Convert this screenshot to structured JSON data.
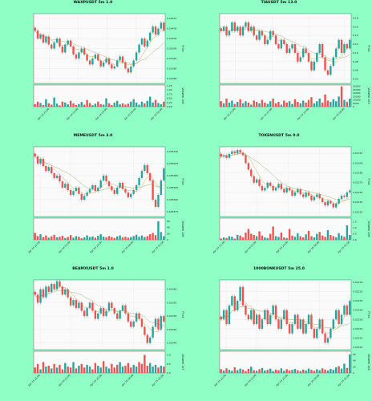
{
  "colors": {
    "background": "#8fffc5",
    "up": "#26a69a",
    "down": "#ef5350",
    "ma1": "#b8860b",
    "ma2": "#6b8e23"
  },
  "ylabel_price": "Price",
  "ylabel_volume": "Volume",
  "chart_data": [
    {
      "type": "candlestick",
      "title": "WAXPUSDT 5m 1.0",
      "ylabel": "Price",
      "ylabel2": "Volume",
      "volume_exp": "1e6",
      "price_ticks": [
        "0.03410",
        "0.03405",
        "0.03400",
        "0.03395",
        "0.03390",
        "0.03385",
        "0.03380"
      ],
      "price_range": [
        0.033775,
        0.034125
      ],
      "volume_ticks": [
        "1.25",
        "1.00",
        "0.75",
        "0.50",
        "0.25",
        "0.00"
      ],
      "volume_range": [
        0,
        1.3
      ],
      "x_ticks": [
        "Apr 24 21:00",
        "Apr 24 22:00",
        "Apr 24 23:00",
        "Apr 25 00:00",
        "Apr 25 01:00"
      ],
      "x_tick_pos": [
        0.12,
        0.34,
        0.56,
        0.78,
        0.98
      ],
      "close": [
        0.03404,
        0.034,
        0.03402,
        0.03398,
        0.03401,
        0.03397,
        0.03395,
        0.03398,
        0.034,
        0.03396,
        0.03393,
        0.03397,
        0.03399,
        0.03396,
        0.03392,
        0.0339,
        0.03393,
        0.03395,
        0.03392,
        0.03389,
        0.03387,
        0.0339,
        0.03392,
        0.03389,
        0.03386,
        0.03388,
        0.0339,
        0.03387,
        0.03385,
        0.03386,
        0.03389,
        0.03391,
        0.03388,
        0.03385,
        0.03383,
        0.03386,
        0.03389,
        0.03393,
        0.03397,
        0.034,
        0.03396,
        0.03399,
        0.03403,
        0.03406,
        0.03402,
        0.03405,
        0.03408,
        0.03404
      ],
      "volume": [
        0.15,
        0.3,
        0.22,
        0.1,
        0.45,
        0.2,
        0.12,
        0.55,
        0.18,
        0.08,
        0.3,
        0.25,
        0.14,
        0.35,
        0.2,
        0.1,
        0.16,
        0.28,
        0.12,
        0.4,
        0.22,
        0.09,
        0.18,
        0.3,
        0.15,
        0.12,
        0.5,
        0.2,
        0.1,
        0.25,
        0.35,
        0.14,
        0.2,
        0.12,
        0.18,
        0.3,
        0.45,
        0.25,
        0.12,
        0.3,
        0.2,
        0.35,
        0.6,
        0.25,
        0.4,
        0.22,
        0.15,
        0.3
      ]
    },
    {
      "type": "candlestick",
      "title": "TIAUSDT 5m 13.0",
      "ylabel": "Price",
      "ylabel2": "Volume",
      "volume_exp": "1e3",
      "price_ticks": [
        "6.18",
        "6.16",
        "6.14",
        "6.12",
        "6.10",
        "6.08",
        "6.06",
        "6.04"
      ],
      "price_range": [
        6.03,
        6.19
      ],
      "volume_ticks": [
        "30000",
        "25000",
        "20000",
        "15000",
        "10000",
        "5000",
        "0"
      ],
      "volume_range": [
        0,
        32000
      ],
      "x_ticks": [
        "Apr 24 21:00",
        "Apr 24 22:00",
        "Apr 24 23:00",
        "Apr 25 00:00"
      ],
      "x_tick_pos": [
        0.12,
        0.4,
        0.68,
        0.95
      ],
      "close": [
        6.15,
        6.16,
        6.14,
        6.15,
        6.17,
        6.15,
        6.16,
        6.14,
        6.16,
        6.17,
        6.15,
        6.16,
        6.14,
        6.13,
        6.15,
        6.14,
        6.12,
        6.13,
        6.15,
        6.14,
        6.12,
        6.11,
        6.13,
        6.12,
        6.1,
        6.11,
        6.12,
        6.1,
        6.08,
        6.09,
        6.11,
        6.1,
        6.08,
        6.06,
        6.08,
        6.1,
        6.12,
        6.09,
        6.06,
        6.05,
        6.07,
        6.09,
        6.11,
        6.13,
        6.1,
        6.12,
        6.11,
        6.13
      ],
      "volume": [
        8000,
        5000,
        12000,
        6000,
        9000,
        4000,
        7000,
        11000,
        5000,
        8000,
        6000,
        3000,
        9000,
        7000,
        5000,
        10000,
        6000,
        4000,
        8000,
        12000,
        5000,
        7000,
        3000,
        9000,
        6000,
        8000,
        4000,
        11000,
        7000,
        5000,
        9000,
        6000,
        10000,
        14000,
        5000,
        8000,
        12000,
        6000,
        18000,
        9000,
        7000,
        11000,
        8000,
        15000,
        30000,
        10000,
        7000,
        12000
      ]
    },
    {
      "type": "candlestick",
      "title": "MEMEUSDT 5m 3.0",
      "ylabel": "Price",
      "ylabel2": "Volume",
      "volume_exp": "1e6",
      "price_ticks": [
        "0.005700",
        "0.005675",
        "0.005650",
        "0.005625",
        "0.005600",
        "0.005575"
      ],
      "price_range": [
        0.005565,
        0.00571
      ],
      "volume_ticks": [
        "60",
        "40",
        "20",
        "0"
      ],
      "volume_range": [
        0,
        70
      ],
      "x_ticks": [
        "Apr 24 21:00",
        "Apr 24 22:00",
        "Apr 24 23:00",
        "Apr 25 00:00",
        "Apr 25 01:00"
      ],
      "x_tick_pos": [
        0.05,
        0.28,
        0.52,
        0.76,
        0.99
      ],
      "close": [
        0.00569,
        0.005675,
        0.005685,
        0.00567,
        0.00566,
        0.005668,
        0.005655,
        0.005645,
        0.00565,
        0.005638,
        0.005625,
        0.005633,
        0.00562,
        0.00561,
        0.005618,
        0.005625,
        0.005612,
        0.0056,
        0.005608,
        0.005615,
        0.005622,
        0.00563,
        0.005618,
        0.005625,
        0.00564,
        0.00565,
        0.005638,
        0.005628,
        0.00562,
        0.005612,
        0.005625,
        0.005635,
        0.005622,
        0.005615,
        0.005605,
        0.005612,
        0.00562,
        0.00563,
        0.005645,
        0.00566,
        0.005672,
        0.005655,
        0.00564,
        0.0056,
        0.005585,
        0.00561,
        0.00564,
        0.005665
      ],
      "volume": [
        22,
        12,
        18,
        9,
        14,
        7,
        11,
        16,
        8,
        10,
        13,
        6,
        9,
        15,
        7,
        12,
        10,
        5,
        8,
        14,
        9,
        11,
        7,
        13,
        18,
        10,
        8,
        12,
        9,
        6,
        11,
        14,
        8,
        10,
        7,
        9,
        12,
        16,
        10,
        14,
        9,
        12,
        18,
        22,
        15,
        60,
        25,
        12
      ]
    },
    {
      "type": "candlestick",
      "title": "TOKENUSDT 5m 0.0",
      "ylabel": "Price",
      "ylabel2": "Volume",
      "volume_exp": "1e6",
      "price_ticks": [
        "0.01315",
        "0.01300",
        "0.01285",
        "0.01270",
        "0.01255",
        "0.01240",
        "0.01225"
      ],
      "price_range": [
        0.01218,
        0.01325
      ],
      "volume_ticks": [
        "1.5",
        "1.0",
        "0.5",
        "0.0"
      ],
      "volume_range": [
        0,
        1.8
      ],
      "x_ticks": [
        "Apr 24 21:00",
        "Apr 24 22:00",
        "Apr 24 23:00",
        "Apr 25 00:00",
        "Apr 25 01:00"
      ],
      "x_tick_pos": [
        0.04,
        0.28,
        0.52,
        0.76,
        0.99
      ],
      "close": [
        0.0131,
        0.01312,
        0.01308,
        0.01314,
        0.01318,
        0.01315,
        0.0132,
        0.01316,
        0.01312,
        0.013,
        0.0129,
        0.0128,
        0.0127,
        0.01275,
        0.01265,
        0.01258,
        0.01262,
        0.0127,
        0.01265,
        0.01258,
        0.01262,
        0.01268,
        0.0126,
        0.01255,
        0.01262,
        0.01258,
        0.0125,
        0.01255,
        0.0126,
        0.01252,
        0.01248,
        0.01255,
        0.0125,
        0.01243,
        0.01248,
        0.01252,
        0.01246,
        0.0124,
        0.01235,
        0.01242,
        0.01238,
        0.01232,
        0.01238,
        0.01245,
        0.0125,
        0.01248,
        0.01255,
        0.01258
      ],
      "volume": [
        0.1,
        0.2,
        0.15,
        0.3,
        0.25,
        0.1,
        0.4,
        0.35,
        0.2,
        0.6,
        0.9,
        0.5,
        0.4,
        0.3,
        0.7,
        0.35,
        0.2,
        0.15,
        0.5,
        1.1,
        0.3,
        0.25,
        0.6,
        0.2,
        0.15,
        0.9,
        0.35,
        0.25,
        0.55,
        0.3,
        0.2,
        0.45,
        0.75,
        0.3,
        0.2,
        0.5,
        0.65,
        0.35,
        0.25,
        0.8,
        0.4,
        0.3,
        0.2,
        0.55,
        0.35,
        0.25,
        1.2,
        0.4
      ]
    },
    {
      "type": "candlestick",
      "title": "BEAMXUSDT 5m 1.0",
      "ylabel": "Price",
      "ylabel2": "Volume",
      "volume_exp": "1e7",
      "price_ticks": [
        "0.01060",
        "0.01055",
        "0.01050",
        "0.01045",
        "0.01040"
      ],
      "price_range": [
        0.010375,
        0.010635
      ],
      "volume_ticks": [
        "1.0",
        "0.5",
        "0.0"
      ],
      "volume_range": [
        0,
        1.2
      ],
      "x_ticks": [
        "Apr 24 21:00",
        "Apr 24 22:00",
        "Apr 24 23:00",
        "Apr 25 00:00",
        "Apr 25 01:00"
      ],
      "x_tick_pos": [
        0.05,
        0.28,
        0.52,
        0.76,
        0.99
      ],
      "close": [
        0.01058,
        0.01055,
        0.0106,
        0.01057,
        0.01061,
        0.01059,
        0.01062,
        0.0106,
        0.01063,
        0.01061,
        0.01058,
        0.0106,
        0.01057,
        0.01054,
        0.01056,
        0.01053,
        0.01055,
        0.01052,
        0.0105,
        0.01053,
        0.01055,
        0.01052,
        0.01049,
        0.01051,
        0.01053,
        0.0105,
        0.01052,
        0.01055,
        0.01053,
        0.01051,
        0.01049,
        0.01052,
        0.01054,
        0.01051,
        0.01048,
        0.01046,
        0.01048,
        0.01051,
        0.01049,
        0.01046,
        0.01043,
        0.0104,
        0.01042,
        0.01046,
        0.01049,
        0.01045,
        0.0105,
        0.01048
      ],
      "volume": [
        0.3,
        0.5,
        0.2,
        0.6,
        0.35,
        0.4,
        0.25,
        0.5,
        0.3,
        0.45,
        0.2,
        0.55,
        0.35,
        0.3,
        0.6,
        0.25,
        0.4,
        0.5,
        0.3,
        0.45,
        0.35,
        0.2,
        0.55,
        0.4,
        0.3,
        0.65,
        0.35,
        0.25,
        0.5,
        0.3,
        0.45,
        0.6,
        0.35,
        0.4,
        0.55,
        0.3,
        0.45,
        0.35,
        0.6,
        0.5,
        1.0,
        0.4,
        0.55,
        0.35,
        0.45,
        0.3,
        0.4,
        0.35
      ]
    },
    {
      "type": "candlestick",
      "title": "1000BONKUSDT 5m 25.0",
      "ylabel": "Price",
      "ylabel2": "Volume",
      "volume_exp": "1e6",
      "price_ticks": [
        "0.02234",
        "0.02232",
        "0.02230",
        "0.02228",
        "0.02226",
        "0.02224",
        "0.02222",
        "0.02220"
      ],
      "price_range": [
        0.022195,
        0.022345
      ],
      "volume_ticks": [
        "60",
        "40",
        "20",
        "0"
      ],
      "volume_range": [
        0,
        70
      ],
      "x_ticks": [
        "Apr 24 21:00",
        "Apr 24 22:00",
        "Apr 24 23:00",
        "Apr 25 00:00",
        "Apr 25 01:00"
      ],
      "x_tick_pos": [
        0.05,
        0.28,
        0.52,
        0.76,
        0.99
      ],
      "close": [
        0.02226,
        0.02228,
        0.02225,
        0.02229,
        0.02231,
        0.02228,
        0.0223,
        0.02233,
        0.02229,
        0.02227,
        0.02226,
        0.02228,
        0.02225,
        0.02227,
        0.02224,
        0.02226,
        0.02228,
        0.02225,
        0.02227,
        0.02229,
        0.02226,
        0.02224,
        0.02226,
        0.02228,
        0.02225,
        0.02223,
        0.02225,
        0.02227,
        0.02224,
        0.02226,
        0.02223,
        0.02225,
        0.02227,
        0.02224,
        0.02222,
        0.02224,
        0.02226,
        0.02223,
        0.02221,
        0.02222,
        0.02224,
        0.02226,
        0.02228,
        0.02225,
        0.02227,
        0.02229,
        0.02227,
        0.0223
      ],
      "volume": [
        12,
        8,
        15,
        10,
        7,
        18,
        9,
        14,
        11,
        6,
        13,
        20,
        9,
        7,
        12,
        16,
        8,
        10,
        14,
        6,
        11,
        9,
        15,
        7,
        12,
        8,
        10,
        13,
        9,
        6,
        11,
        8,
        14,
        10,
        7,
        12,
        9,
        15,
        11,
        8,
        13,
        10,
        18,
        22,
        14,
        30,
        16,
        60
      ]
    }
  ]
}
